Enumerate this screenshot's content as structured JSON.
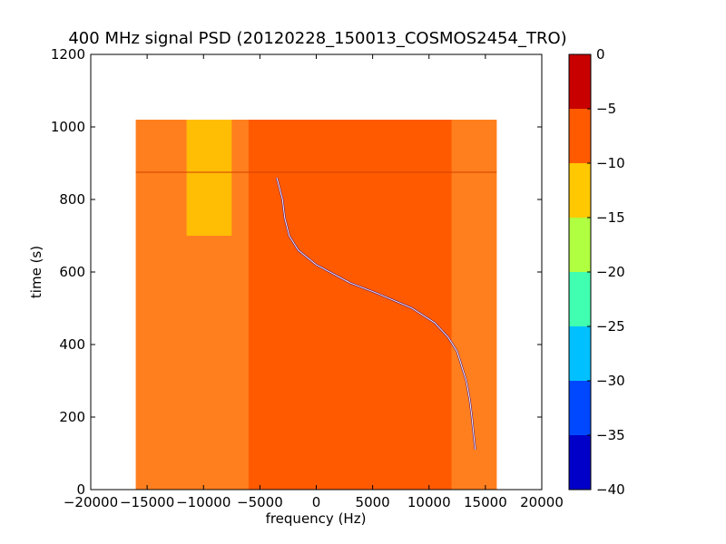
{
  "chart_data": {
    "type": "heatmap",
    "title": "400 MHz signal PSD (20120228_150013_COSMOS2454_TRO)",
    "xlabel": "frequency (Hz)",
    "ylabel": "time (s)",
    "xlim": [
      -20000,
      20000
    ],
    "ylim": [
      0,
      1200
    ],
    "x_ticks": [
      -20000,
      -15000,
      -10000,
      -5000,
      0,
      5000,
      10000,
      15000,
      20000
    ],
    "y_ticks": [
      0,
      200,
      400,
      600,
      800,
      1000,
      1200
    ],
    "data_extent": {
      "freq_range": [
        -16000,
        16000
      ],
      "time_range": [
        0,
        1020
      ]
    },
    "colorbar": {
      "range": [
        -40,
        0
      ],
      "ticks": [
        0,
        -5,
        -10,
        -15,
        -20,
        -25,
        -30,
        -35,
        -40
      ],
      "levels": [
        {
          "from": -40,
          "to": -35,
          "color": "#0000c8"
        },
        {
          "from": -35,
          "to": -30,
          "color": "#0048ff"
        },
        {
          "from": -30,
          "to": -25,
          "color": "#00c0ff"
        },
        {
          "from": -25,
          "to": -20,
          "color": "#40ffb0"
        },
        {
          "from": -20,
          "to": -15,
          "color": "#b0ff40"
        },
        {
          "from": -15,
          "to": -10,
          "color": "#ffc800"
        },
        {
          "from": -10,
          "to": -5,
          "color": "#ff5a00"
        },
        {
          "from": -5,
          "to": 0,
          "color": "#c80000"
        }
      ]
    },
    "regions": [
      {
        "name": "background-level",
        "level": -7.5,
        "color": "#ff5a00"
      },
      {
        "name": "low-edge-band",
        "freq_range": [
          -16000,
          -6000
        ],
        "level": -10,
        "color": "#ff8c28"
      },
      {
        "name": "yellow-band",
        "freq_range": [
          -11500,
          -7500
        ],
        "time_range": [
          700,
          1020
        ],
        "level": -12,
        "color": "#ffc800"
      },
      {
        "name": "high-edge-band",
        "freq_range": [
          12000,
          16000
        ],
        "level": -10,
        "color": "#ff8c28"
      }
    ],
    "signal_trace": {
      "color": "#ffffff",
      "points": [
        {
          "time": 860,
          "freq": -3500
        },
        {
          "time": 800,
          "freq": -3000
        },
        {
          "time": 750,
          "freq": -2800
        },
        {
          "time": 700,
          "freq": -2400
        },
        {
          "time": 660,
          "freq": -1600
        },
        {
          "time": 620,
          "freq": 0
        },
        {
          "time": 600,
          "freq": 1200
        },
        {
          "time": 570,
          "freq": 3000
        },
        {
          "time": 540,
          "freq": 5500
        },
        {
          "time": 500,
          "freq": 8500
        },
        {
          "time": 460,
          "freq": 10500
        },
        {
          "time": 420,
          "freq": 11700
        },
        {
          "time": 380,
          "freq": 12500
        },
        {
          "time": 300,
          "freq": 13300
        },
        {
          "time": 250,
          "freq": 13600
        },
        {
          "time": 200,
          "freq": 13800
        },
        {
          "time": 110,
          "freq": 14100
        }
      ]
    },
    "horizontal_line": {
      "time": 875,
      "level": -7.5
    }
  }
}
